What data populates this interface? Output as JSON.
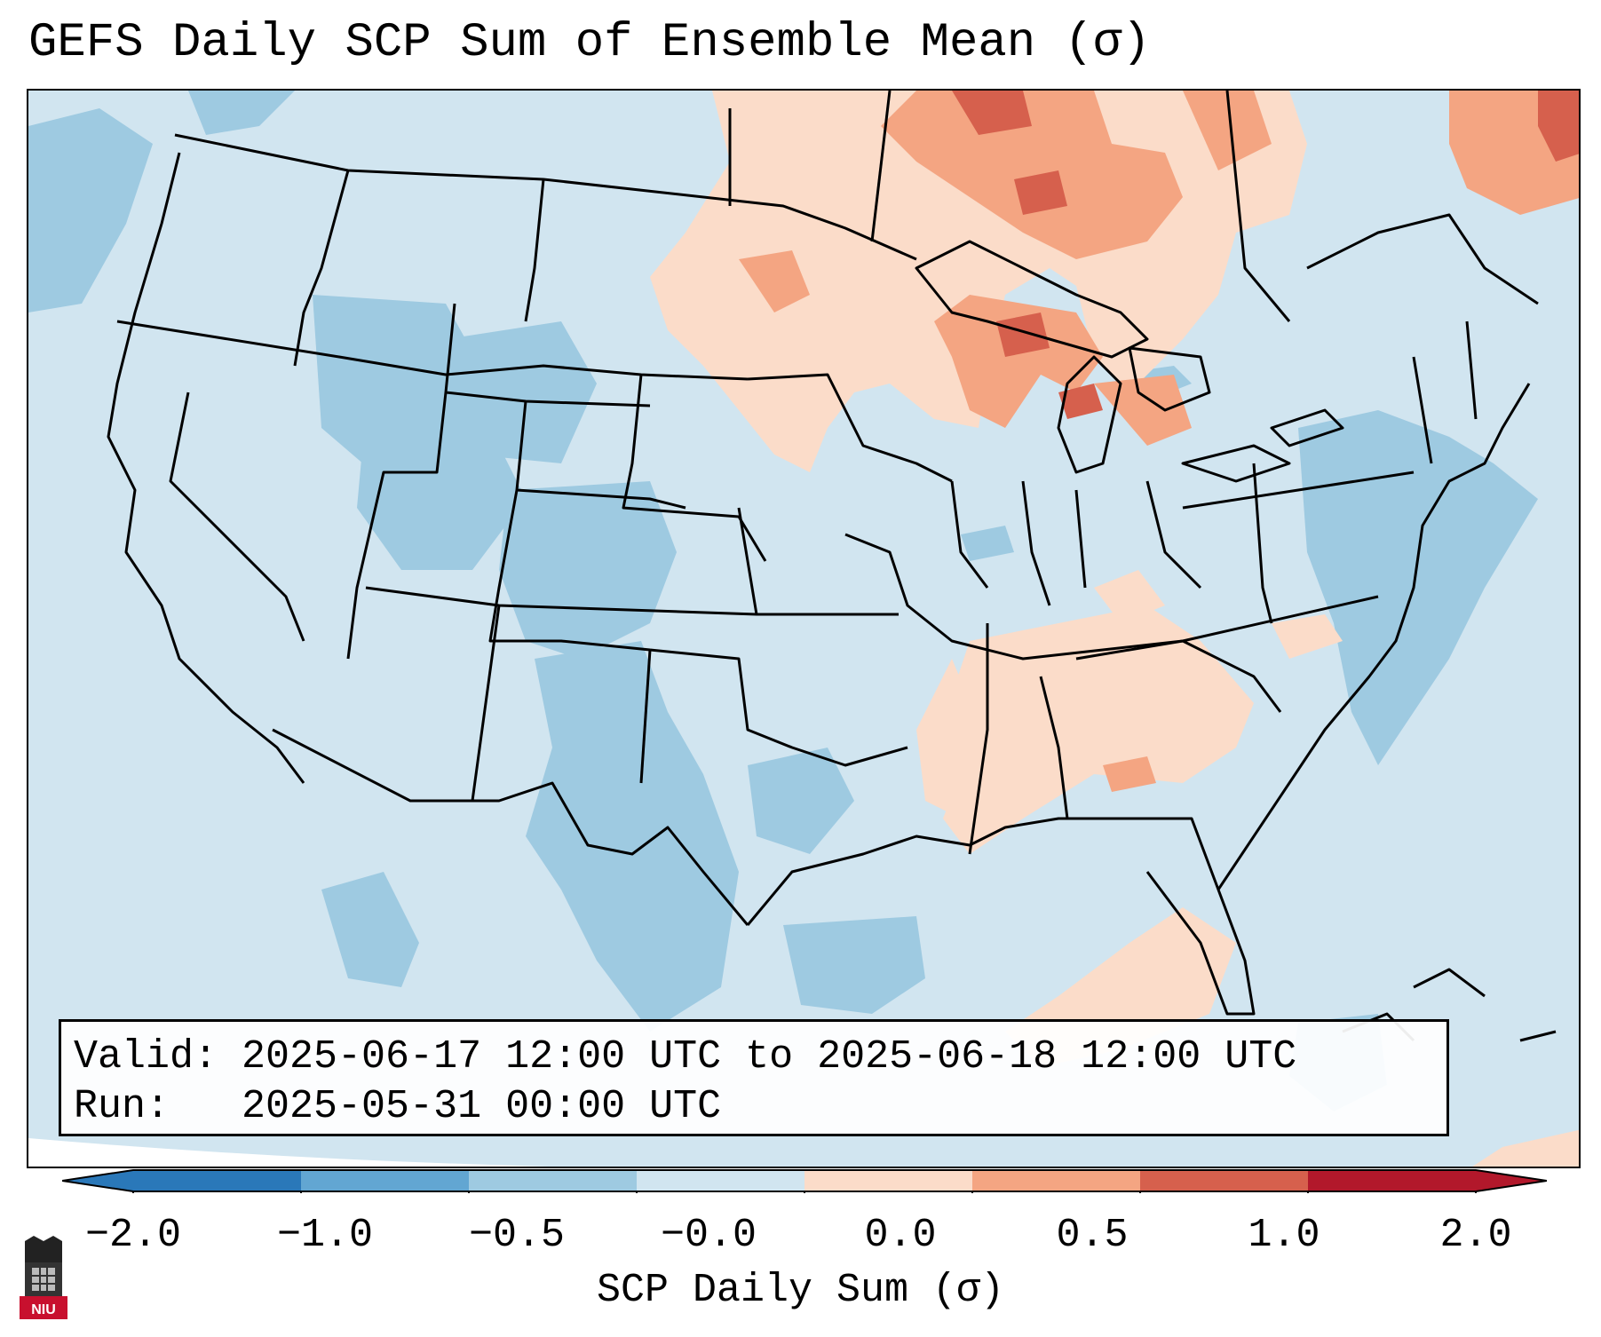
{
  "title": "GEFS Daily SCP Sum of Ensemble Mean (σ)",
  "info": {
    "valid": "Valid: 2025-06-17 12:00 UTC to 2025-06-18 12:00 UTC",
    "run": "Run:   2025-05-31 00:00 UTC"
  },
  "colorbar": {
    "label": "SCP Daily Sum (σ)",
    "ticks": [
      "−2.0",
      "−1.0",
      "−0.5",
      "−0.0",
      "0.0",
      "0.5",
      "1.0",
      "2.0"
    ],
    "colors": [
      "#2a78b9",
      "#62a6d2",
      "#9ecae1",
      "#d1e5f0",
      "#fbdcc9",
      "#f4a582",
      "#d6604d",
      "#b2182b"
    ],
    "extend": "both"
  },
  "logo": {
    "text": "NIU",
    "color": "#c8102e"
  },
  "map": {
    "background_color": "#d1e5f0",
    "region": "Continental United States"
  }
}
